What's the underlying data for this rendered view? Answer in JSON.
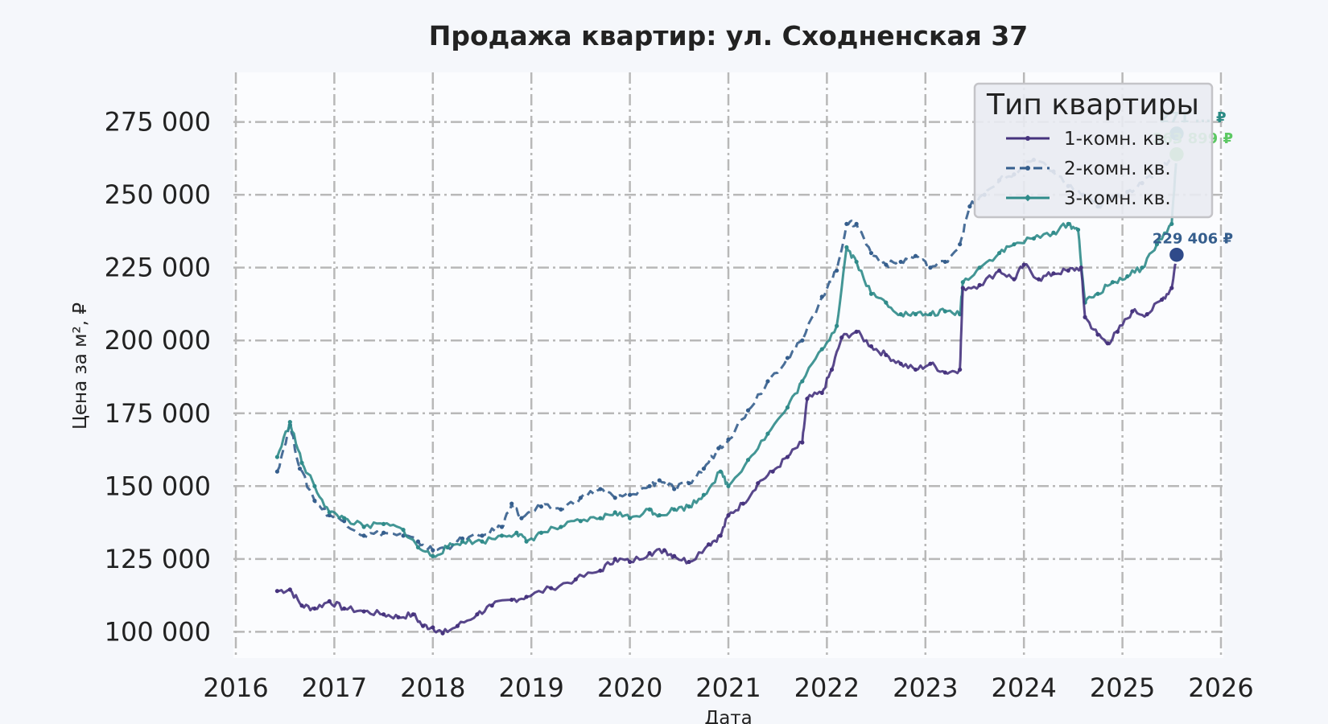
{
  "chart_data": {
    "type": "line",
    "title": "Продажа квартир: ул. Сходненская 37",
    "xlabel": "Дата",
    "ylabel": "Цена за м², ₽",
    "xlim": [
      2016,
      2026
    ],
    "ylim": [
      91000,
      292000
    ],
    "x_ticks": [
      "2016",
      "2017",
      "2018",
      "2019",
      "2020",
      "2021",
      "2022",
      "2023",
      "2024",
      "2025",
      "2026"
    ],
    "y_ticks": [
      {
        "value": 100000,
        "label": "100 000"
      },
      {
        "value": 125000,
        "label": "125 000"
      },
      {
        "value": 150000,
        "label": "150 000"
      },
      {
        "value": 175000,
        "label": "175 000"
      },
      {
        "value": 200000,
        "label": "200 000"
      },
      {
        "value": 225000,
        "label": "225 000"
      },
      {
        "value": 250000,
        "label": "250 000"
      },
      {
        "value": 275000,
        "label": "275 000"
      }
    ],
    "grid": true,
    "legend": {
      "title": "Тип квартиры",
      "position": "top-right"
    },
    "series": [
      {
        "name": "1-комн. кв.",
        "color": "#46337e",
        "style": "solid",
        "marker": "dot",
        "x": [
          2016.42,
          2016.55,
          2016.67,
          2016.8,
          2016.95,
          2017.1,
          2017.3,
          2017.5,
          2017.65,
          2017.8,
          2017.9,
          2018.0,
          2018.1,
          2018.25,
          2018.45,
          2018.6,
          2018.8,
          2018.95,
          2019.2,
          2019.45,
          2019.7,
          2019.85,
          2020.0,
          2020.2,
          2020.35,
          2020.45,
          2020.6,
          2020.8,
          2020.92,
          2021.0,
          2021.15,
          2021.3,
          2021.45,
          2021.6,
          2021.75,
          2021.8,
          2021.95,
          2022.05,
          2022.15,
          2022.3,
          2022.45,
          2022.6,
          2022.75,
          2022.9,
          2023.05,
          2023.2,
          2023.35,
          2023.38,
          2023.55,
          2023.75,
          2023.9,
          2024.0,
          2024.15,
          2024.3,
          2024.45,
          2024.58,
          2024.62,
          2024.75,
          2024.85,
          2024.95,
          2025.1,
          2025.25,
          2025.4,
          2025.5,
          2025.55
        ],
        "values": [
          114000,
          114500,
          109000,
          108000,
          110500,
          108000,
          107000,
          106000,
          105000,
          106000,
          102000,
          101500,
          99500,
          102000,
          106000,
          109000,
          111000,
          112000,
          115000,
          118000,
          121000,
          125000,
          124000,
          127000,
          128000,
          126000,
          124000,
          130000,
          133000,
          140000,
          144000,
          151000,
          155000,
          160000,
          165000,
          180000,
          182000,
          190000,
          201000,
          203000,
          198000,
          195000,
          192000,
          190000,
          192000,
          189000,
          190000,
          218000,
          219000,
          224000,
          221000,
          226000,
          221000,
          223000,
          224000,
          225000,
          208000,
          202000,
          199000,
          203000,
          210000,
          209000,
          214000,
          218000,
          229406
        ]
      },
      {
        "name": "2-комн. кв.",
        "color": "#355e8d",
        "style": "dashed",
        "marker": "dot",
        "x": [
          2016.42,
          2016.55,
          2016.65,
          2016.8,
          2016.95,
          2017.1,
          2017.3,
          2017.5,
          2017.7,
          2017.85,
          2018.0,
          2018.15,
          2018.3,
          2018.5,
          2018.7,
          2018.8,
          2018.9,
          2019.1,
          2019.3,
          2019.5,
          2019.7,
          2019.85,
          2020.0,
          2020.2,
          2020.3,
          2020.45,
          2020.6,
          2020.75,
          2020.9,
          2021.0,
          2021.2,
          2021.4,
          2021.6,
          2021.75,
          2021.95,
          2022.1,
          2022.2,
          2022.3,
          2022.45,
          2022.6,
          2022.75,
          2022.9,
          2023.05,
          2023.2,
          2023.35,
          2023.45,
          2023.6,
          2023.75,
          2023.9,
          2024.1,
          2024.3,
          2024.45,
          2024.6,
          2024.75,
          2024.9,
          2025.05,
          2025.2,
          2025.35,
          2025.5,
          2025.55
        ],
        "values": [
          155000,
          171000,
          156000,
          145000,
          140000,
          138000,
          133000,
          134000,
          133000,
          131000,
          128000,
          129000,
          132000,
          133000,
          136000,
          144000,
          139000,
          143000,
          142000,
          146000,
          149000,
          146000,
          147000,
          150000,
          152000,
          149000,
          151000,
          156000,
          163000,
          166000,
          176000,
          186000,
          194000,
          200000,
          215000,
          224000,
          240000,
          240000,
          230000,
          226000,
          227000,
          229000,
          225000,
          227000,
          233000,
          246000,
          250000,
          255000,
          257000,
          262000,
          258000,
          253000,
          250000,
          246000,
          249000,
          251000,
          254000,
          258000,
          263000,
          271000
        ]
      },
      {
        "name": "3-комн. кв.",
        "color": "#2f8b8a",
        "style": "solid",
        "marker": "diamond",
        "x": [
          2016.42,
          2016.55,
          2016.67,
          2016.8,
          2016.95,
          2017.1,
          2017.3,
          2017.5,
          2017.7,
          2017.85,
          2018.0,
          2018.15,
          2018.3,
          2018.5,
          2018.7,
          2018.85,
          2018.95,
          2019.1,
          2019.3,
          2019.5,
          2019.7,
          2019.85,
          2020.0,
          2020.2,
          2020.3,
          2020.45,
          2020.6,
          2020.75,
          2020.92,
          2021.0,
          2021.2,
          2021.4,
          2021.6,
          2021.75,
          2021.95,
          2022.1,
          2022.2,
          2022.3,
          2022.45,
          2022.6,
          2022.75,
          2022.9,
          2023.05,
          2023.2,
          2023.35,
          2023.38,
          2023.55,
          2023.75,
          2023.9,
          2024.1,
          2024.3,
          2024.45,
          2024.55,
          2024.62,
          2024.75,
          2024.9,
          2025.05,
          2025.2,
          2025.35,
          2025.5,
          2025.55
        ],
        "values": [
          160000,
          172000,
          158000,
          150000,
          141000,
          139000,
          136000,
          137000,
          135000,
          129000,
          126000,
          129000,
          131000,
          131000,
          133000,
          134000,
          131000,
          134000,
          136000,
          138000,
          139000,
          141000,
          139000,
          142000,
          140000,
          142000,
          143000,
          147000,
          155000,
          150000,
          159000,
          168000,
          177000,
          186000,
          197000,
          205000,
          232000,
          227000,
          216000,
          213000,
          209000,
          209000,
          209000,
          210000,
          209000,
          220000,
          225000,
          230000,
          233000,
          235000,
          237000,
          240000,
          238000,
          213000,
          216000,
          220000,
          222000,
          225000,
          233000,
          240000,
          263899
        ]
      }
    ],
    "end_labels": [
      {
        "series": 0,
        "text": "229 406 ₽",
        "color": "#355e8d"
      },
      {
        "series": 1,
        "text": "271 ... ₽",
        "color": "#2a8a84"
      },
      {
        "series": 2,
        "text": "263 899 ₽",
        "color": "#5cc863"
      }
    ],
    "end_points": [
      {
        "series": 0,
        "color": "#2f4a8a"
      },
      {
        "series": 1,
        "color": "#21918c"
      },
      {
        "series": 2,
        "color": "#5ec962"
      }
    ]
  }
}
